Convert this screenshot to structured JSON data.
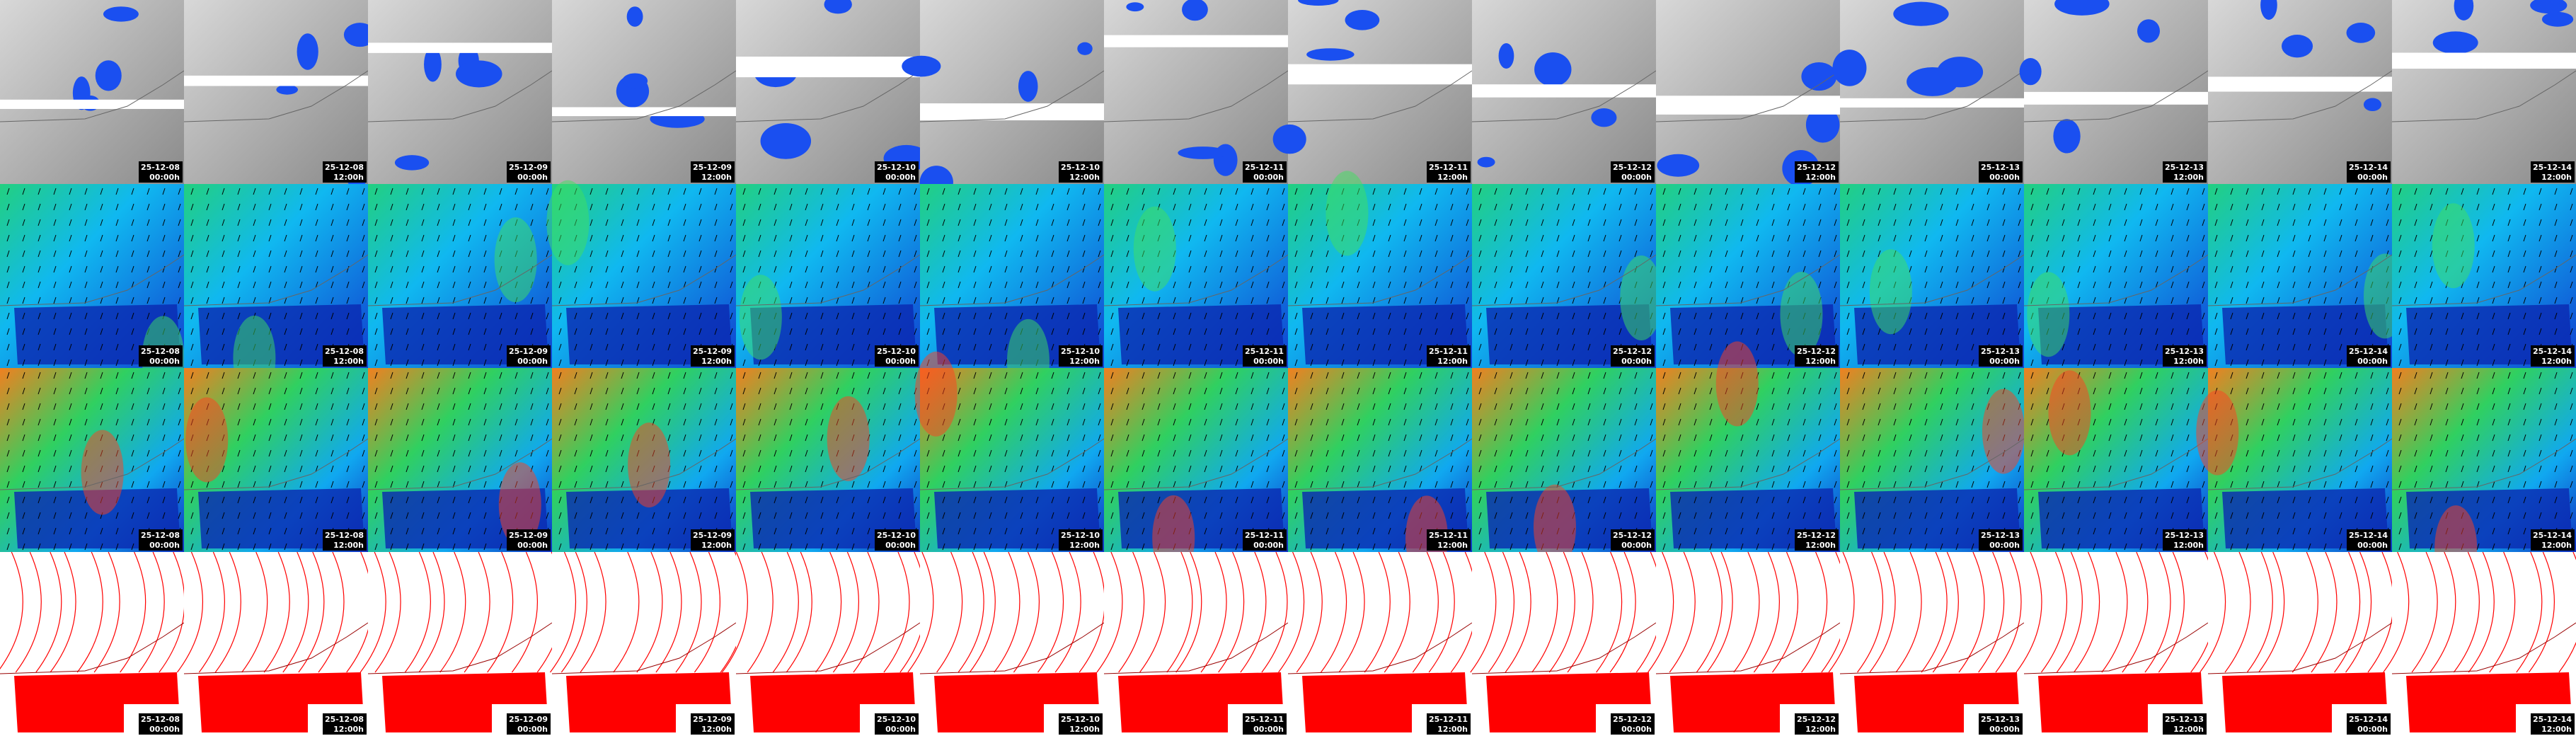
{
  "columns": [
    {
      "date": "25-12-08",
      "time": "00:00h"
    },
    {
      "date": "25-12-08",
      "time": "12:00h"
    },
    {
      "date": "25-12-09",
      "time": "00:00h"
    },
    {
      "date": "25-12-09",
      "time": "12:00h"
    },
    {
      "date": "25-12-10",
      "time": "00:00h"
    },
    {
      "date": "25-12-10",
      "time": "12:00h"
    },
    {
      "date": "25-12-11",
      "time": "00:00h"
    },
    {
      "date": "25-12-11",
      "time": "12:00h"
    },
    {
      "date": "25-12-12",
      "time": "00:00h"
    },
    {
      "date": "25-12-12",
      "time": "12:00h"
    },
    {
      "date": "25-12-13",
      "time": "00:00h"
    },
    {
      "date": "25-12-13",
      "time": "12:00h"
    },
    {
      "date": "25-12-14",
      "time": "00:00h"
    },
    {
      "date": "25-12-14",
      "time": "12:00h"
    }
  ]
}
